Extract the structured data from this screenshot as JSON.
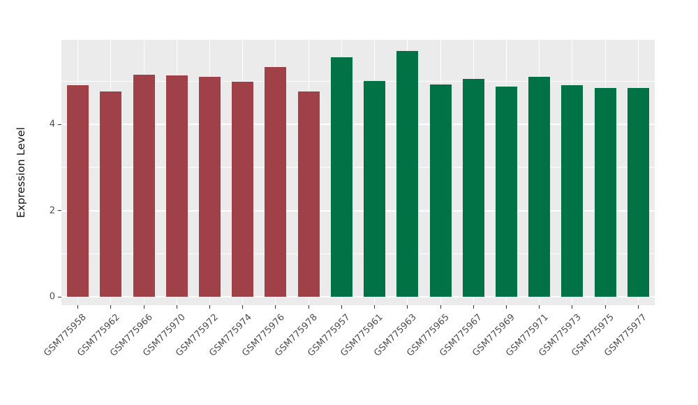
{
  "chart_data": {
    "type": "bar",
    "title": "",
    "xlabel": "",
    "ylabel": "Expression Level",
    "ylim": [
      0,
      5.96
    ],
    "yticks": [
      0,
      2,
      4
    ],
    "yticks_minor": [
      1,
      3,
      5
    ],
    "grid": true,
    "legend": false,
    "panel_bg": "#EBEBEB",
    "grid_color": "#FFFFFF",
    "tick_color": "#333333",
    "group_colors": {
      "left_group": "#A04049",
      "right_group": "#007245"
    },
    "categories": [
      "GSM775958",
      "GSM775962",
      "GSM775966",
      "GSM775970",
      "GSM775972",
      "GSM775974",
      "GSM775976",
      "GSM775978",
      "GSM775957",
      "GSM775961",
      "GSM775963",
      "GSM775965",
      "GSM775967",
      "GSM775969",
      "GSM775971",
      "GSM775973",
      "GSM775975",
      "GSM775977"
    ],
    "values": [
      4.91,
      4.76,
      5.15,
      5.13,
      5.1,
      4.99,
      5.33,
      4.76,
      5.55,
      5.0,
      5.7,
      4.92,
      5.05,
      4.87,
      5.1,
      4.91,
      4.84,
      4.84
    ],
    "bar_colors": [
      "#A04049",
      "#A04049",
      "#A04049",
      "#A04049",
      "#A04049",
      "#A04049",
      "#A04049",
      "#A04049",
      "#007245",
      "#007245",
      "#007245",
      "#007245",
      "#007245",
      "#007245",
      "#007245",
      "#007245",
      "#007245",
      "#007245"
    ]
  }
}
